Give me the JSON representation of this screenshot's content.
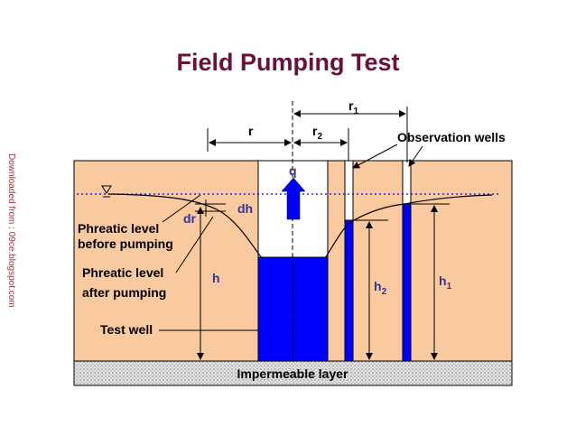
{
  "title": "Field Pumping Test",
  "watermark": "Downloaded from : 09ce.blogspot.com",
  "labels": {
    "r": "r",
    "r1_base": "r",
    "r1_sub": "1",
    "r2_base": "r",
    "r2_sub": "2",
    "observation_wells": "Observation wells",
    "q": "q",
    "dh": "dh",
    "dr": "dr",
    "phreatic_before_1": "Phreatic level",
    "phreatic_before_2": "before pumping",
    "phreatic_after_1": "Phreatic level",
    "phreatic_after_2": "after pumping",
    "h": "h",
    "h2_base": "h",
    "h2_sub": "2",
    "h1_base": "h",
    "h1_sub": "1",
    "test_well": "Test well",
    "impermeable_layer": "Impermeable layer"
  },
  "colors": {
    "title": "#6b0f3b",
    "soil": "#f9c9a0",
    "water": "#0000ff",
    "label": "#000000",
    "dim_label": "#333399",
    "impermeable": "#d9d9d9"
  }
}
